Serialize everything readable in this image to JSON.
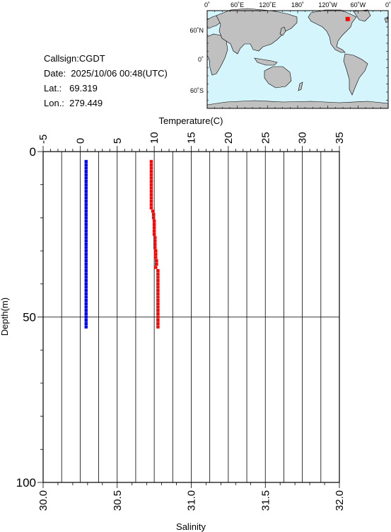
{
  "info": {
    "callsign": "Callsign:CGDT",
    "date": "Date:  2025/10/06 00:48(UTC)",
    "lat": "Lat.:   69.319",
    "lon": "Lon.:  279.449"
  },
  "map": {
    "top_ticks": [
      "0˚",
      "60˚E",
      "120˚E",
      "180˚",
      "120˚W",
      "60˚W",
      "0˚"
    ],
    "lat_ticks": [
      "60˚N",
      "0˚",
      "60˚S"
    ],
    "ocean_color": "#d4f5fb",
    "land_color": "#c0c0c0",
    "marker_color": "#ff0000",
    "marker": {
      "lon": 279.449,
      "lat": 69.319
    }
  },
  "chart_data": {
    "type": "scatter",
    "title": "",
    "ylabel": "Depth(m)",
    "ylim": [
      0,
      100
    ],
    "y_ticks": [
      "0",
      "50",
      "100"
    ],
    "y_grid": [
      50
    ],
    "x_top_label": "Temperature(C)",
    "x_top_lim": [
      -5,
      35
    ],
    "x_top_ticks": [
      "-5",
      "0",
      "5",
      "10",
      "15",
      "20",
      "25",
      "30",
      "35"
    ],
    "x_bottom_label": "Salinity",
    "x_bottom_lim": [
      30.0,
      32.0
    ],
    "x_bottom_ticks": [
      "30.0",
      "30.5",
      "31.0",
      "31.5",
      "32.0"
    ],
    "grid": true,
    "series": [
      {
        "axis": "bottom",
        "color": "#0000ff",
        "points": [
          [
            30.29,
            3
          ],
          [
            30.29,
            4
          ],
          [
            30.29,
            5
          ],
          [
            30.29,
            6
          ],
          [
            30.29,
            7
          ],
          [
            30.29,
            8
          ],
          [
            30.29,
            9
          ],
          [
            30.29,
            10
          ],
          [
            30.29,
            11
          ],
          [
            30.29,
            12
          ],
          [
            30.29,
            13
          ],
          [
            30.29,
            14
          ],
          [
            30.29,
            15
          ],
          [
            30.29,
            16
          ],
          [
            30.29,
            17
          ],
          [
            30.29,
            18
          ],
          [
            30.29,
            19
          ],
          [
            30.29,
            20
          ],
          [
            30.29,
            21
          ],
          [
            30.29,
            22
          ],
          [
            30.29,
            23
          ],
          [
            30.29,
            24
          ],
          [
            30.29,
            25
          ],
          [
            30.29,
            26
          ],
          [
            30.29,
            27
          ],
          [
            30.29,
            28
          ],
          [
            30.29,
            29
          ],
          [
            30.29,
            30
          ],
          [
            30.29,
            31
          ],
          [
            30.29,
            32
          ],
          [
            30.29,
            33
          ],
          [
            30.29,
            34
          ],
          [
            30.29,
            35
          ],
          [
            30.29,
            36
          ],
          [
            30.29,
            37
          ],
          [
            30.29,
            38
          ],
          [
            30.29,
            39
          ],
          [
            30.29,
            40
          ],
          [
            30.29,
            41
          ],
          [
            30.29,
            42
          ],
          [
            30.29,
            43
          ],
          [
            30.29,
            44
          ],
          [
            30.29,
            45
          ],
          [
            30.29,
            46
          ],
          [
            30.29,
            47
          ],
          [
            30.29,
            48
          ],
          [
            30.29,
            49
          ],
          [
            30.29,
            50
          ],
          [
            30.29,
            51
          ],
          [
            30.29,
            52
          ],
          [
            30.29,
            53
          ]
        ]
      },
      {
        "axis": "top",
        "color": "#ff0000",
        "points": [
          [
            9.6,
            3
          ],
          [
            9.6,
            4
          ],
          [
            9.6,
            5
          ],
          [
            9.6,
            6
          ],
          [
            9.6,
            7
          ],
          [
            9.6,
            8
          ],
          [
            9.6,
            9
          ],
          [
            9.6,
            10
          ],
          [
            9.6,
            11
          ],
          [
            9.6,
            12
          ],
          [
            9.6,
            13
          ],
          [
            9.6,
            14
          ],
          [
            9.6,
            15
          ],
          [
            9.6,
            16
          ],
          [
            9.6,
            17
          ],
          [
            9.8,
            18
          ],
          [
            9.9,
            19
          ],
          [
            9.9,
            20
          ],
          [
            10.0,
            21
          ],
          [
            10.0,
            22
          ],
          [
            10.0,
            23
          ],
          [
            10.0,
            24
          ],
          [
            10.0,
            25
          ],
          [
            10.1,
            26
          ],
          [
            10.1,
            27
          ],
          [
            10.1,
            28
          ],
          [
            10.1,
            29
          ],
          [
            10.2,
            30
          ],
          [
            10.2,
            31
          ],
          [
            10.2,
            32
          ],
          [
            10.3,
            33
          ],
          [
            10.3,
            34
          ],
          [
            10.2,
            35
          ],
          [
            10.5,
            36
          ],
          [
            10.5,
            37
          ],
          [
            10.5,
            38
          ],
          [
            10.5,
            39
          ],
          [
            10.5,
            40
          ],
          [
            10.5,
            41
          ],
          [
            10.5,
            42
          ],
          [
            10.5,
            43
          ],
          [
            10.5,
            44
          ],
          [
            10.5,
            45
          ],
          [
            10.5,
            46
          ],
          [
            10.5,
            47
          ],
          [
            10.5,
            48
          ],
          [
            10.5,
            49
          ],
          [
            10.5,
            50
          ],
          [
            10.5,
            51
          ],
          [
            10.5,
            52
          ],
          [
            10.5,
            53
          ]
        ]
      }
    ]
  }
}
